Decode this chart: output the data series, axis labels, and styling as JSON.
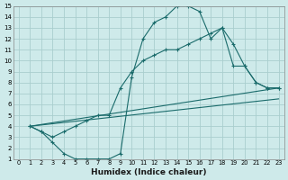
{
  "xlabel": "Humidex (Indice chaleur)",
  "background_color": "#ceeaea",
  "grid_color": "#aacece",
  "line_color": "#1a6b6b",
  "xlim": [
    -0.5,
    23.5
  ],
  "ylim": [
    1,
    15
  ],
  "xticks": [
    0,
    1,
    2,
    3,
    4,
    5,
    6,
    7,
    8,
    9,
    10,
    11,
    12,
    13,
    14,
    15,
    16,
    17,
    18,
    19,
    20,
    21,
    22,
    23
  ],
  "yticks": [
    1,
    2,
    3,
    4,
    5,
    6,
    7,
    8,
    9,
    10,
    11,
    12,
    13,
    14,
    15
  ],
  "line1_x": [
    1,
    2,
    3,
    4,
    5,
    6,
    7,
    8,
    9,
    10,
    11,
    12,
    13,
    14,
    15,
    16,
    17,
    18,
    19,
    20,
    21,
    22,
    23
  ],
  "line1_y": [
    4.0,
    3.5,
    2.5,
    1.5,
    1.0,
    1.0,
    1.0,
    1.0,
    1.5,
    8.5,
    12.0,
    13.5,
    14.0,
    15.0,
    15.0,
    14.5,
    12.0,
    13.0,
    11.5,
    9.5,
    8.0,
    7.5,
    7.5
  ],
  "line2_x": [
    1,
    2,
    3,
    4,
    5,
    6,
    7,
    8,
    9,
    10,
    11,
    12,
    13,
    14,
    15,
    16,
    17,
    18,
    19,
    20,
    21,
    22,
    23
  ],
  "line2_y": [
    4.0,
    3.5,
    3.0,
    3.5,
    4.0,
    4.5,
    5.0,
    5.0,
    7.5,
    9.0,
    10.0,
    10.5,
    11.0,
    11.0,
    11.5,
    12.0,
    12.5,
    13.0,
    9.5,
    9.5,
    8.0,
    7.5,
    7.5
  ],
  "line3_x": [
    1,
    23
  ],
  "line3_y": [
    4.0,
    7.5
  ],
  "line4_x": [
    1,
    23
  ],
  "line4_y": [
    4.0,
    6.5
  ]
}
